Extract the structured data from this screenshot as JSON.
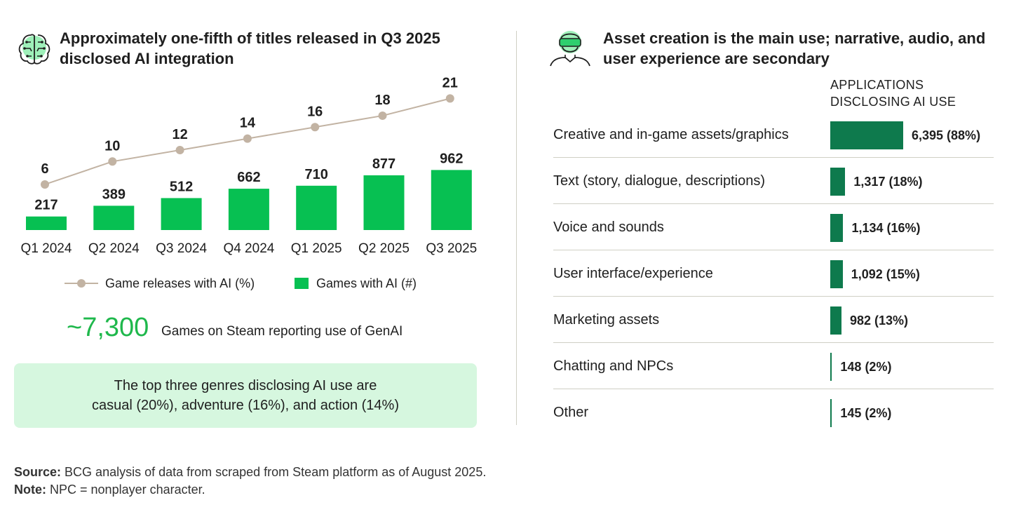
{
  "left_panel": {
    "title": "Approximately one-fifth of titles released in Q3 2025 disclosed AI integration",
    "legend": {
      "line_label": "Game releases with AI (%)",
      "bar_label": "Games with AI (#)"
    },
    "big_stat": "~7,300",
    "big_stat_label": "Games on Steam reporting use of GenAI",
    "genre_note_line1": "The top three genres disclosing AI use are",
    "genre_note_line2": "casual (20%), adventure (16%), and action (14%)"
  },
  "right_panel": {
    "title": "Asset creation is the main use; narrative, audio, and user experience are secondary",
    "column_header_line1": "APPLICATIONS",
    "column_header_line2": "DISCLOSING AI USE"
  },
  "footer": {
    "source_label": "Source:",
    "source_text": "BCG analysis of data from scraped from Steam platform as of August 2025.",
    "note_label": "Note:",
    "note_text": "NPC = nonplayer character."
  },
  "chart_data": [
    {
      "type": "bar",
      "categories": [
        "Q1 2024",
        "Q2 2024",
        "Q3 2024",
        "Q4 2024",
        "Q1 2025",
        "Q2 2025",
        "Q3 2025"
      ],
      "series": [
        {
          "name": "Games with AI (#)",
          "type": "bar",
          "values": [
            217,
            389,
            512,
            662,
            710,
            877,
            962
          ],
          "color": "#07c052"
        },
        {
          "name": "Game releases with AI (%)",
          "type": "line",
          "values": [
            6,
            10,
            12,
            14,
            16,
            18,
            21
          ],
          "color": "#c2b3a3"
        }
      ],
      "grid": false,
      "legend": "bottom"
    },
    {
      "type": "bar",
      "orientation": "horizontal",
      "categories": [
        "Creative and in-game assets/graphics",
        "Text (story, dialogue, descriptions)",
        "Voice and sounds",
        "User interface/experience",
        "Marketing assets",
        "Chatting and NPCs",
        "Other"
      ],
      "values": [
        6395,
        1317,
        1134,
        1092,
        982,
        148,
        145
      ],
      "value_labels": [
        "6,395 (88%)",
        "1,317 (18%)",
        "1,134 (16%)",
        "1,092 (15%)",
        "982 (13%)",
        "148 (2%)",
        "145 (2%)"
      ],
      "color": "#0e7a4d",
      "grid": false
    }
  ]
}
